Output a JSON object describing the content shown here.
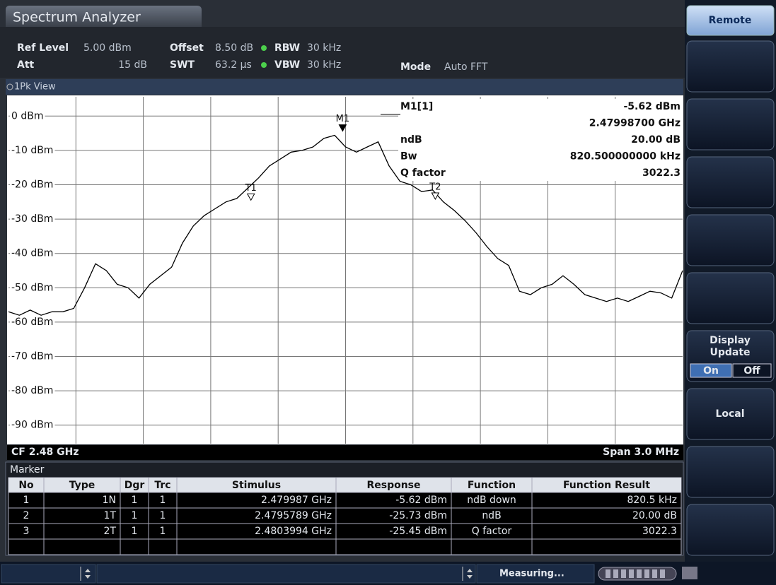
{
  "header": {
    "title": "Spectrum Analyzer",
    "settings": [
      {
        "label": "Ref Level",
        "value": "5.00 dBm"
      },
      {
        "label": "Offset",
        "value": "8.50 dB"
      },
      {
        "label": "RBW",
        "value": "30 kHz"
      },
      {
        "label": "Att",
        "value": "15 dB"
      },
      {
        "label": "SWT",
        "value": "63.2 µs"
      },
      {
        "label": "VBW",
        "value": "30 kHz"
      },
      {
        "label": "Mode",
        "value": "Auto FFT"
      }
    ]
  },
  "view": "1Pk View",
  "chart_data": {
    "type": "line",
    "color": "#000000",
    "ylim": [
      -95,
      5
    ],
    "xlim": [
      2.4785,
      2.4815
    ],
    "yticks": [
      {
        "value": 0,
        "label": "0 dBm"
      },
      {
        "value": -10,
        "label": "-10 dBm"
      },
      {
        "value": -20,
        "label": "-20 dBm"
      },
      {
        "value": -30,
        "label": "-30 dBm"
      },
      {
        "value": -40,
        "label": "-40 dBm"
      },
      {
        "value": -50,
        "label": "-50 dBm"
      },
      {
        "value": -60,
        "label": "-60 dBm"
      },
      {
        "value": -70,
        "label": "-70 dBm"
      },
      {
        "value": -80,
        "label": "-80 dBm"
      },
      {
        "value": -90,
        "label": "-90 dBm"
      }
    ],
    "values": [
      -57,
      -58,
      -56.5,
      -58,
      -57,
      -57,
      -56,
      -50,
      -43,
      -45,
      -49,
      -50,
      -53,
      -49,
      -46.5,
      -44,
      -37,
      -32,
      -29,
      -27,
      -25,
      -24,
      -21,
      -18,
      -14.5,
      -12.5,
      -10.5,
      -10,
      -9,
      -6.5,
      -5.6,
      -9,
      -10.5,
      -9,
      -7.5,
      -14.5,
      -19,
      -20,
      -22,
      -21.5,
      -25,
      -27.5,
      -30.5,
      -34,
      -38,
      -41.5,
      -43.5,
      -51,
      -52,
      -50,
      -49,
      -46.5,
      -49,
      -52,
      -53,
      -54,
      -53,
      -54,
      -52.5,
      -51,
      -51.5,
      -53,
      -45
    ],
    "markers": [
      {
        "label": "M1",
        "x": 2.479987,
        "y": -5.62
      },
      {
        "label": "T1",
        "x": 2.4795789,
        "y": -25.73
      },
      {
        "label": "T2",
        "x": 2.4803994,
        "y": -25.45
      }
    ],
    "readout": [
      {
        "label": "M1[1]",
        "value": "-5.62 dBm"
      },
      {
        "value": "2.47998700 GHz"
      },
      {
        "label": "ndB",
        "value": "20.00 dB"
      },
      {
        "label": "Bw",
        "value": "820.500000000 kHz"
      },
      {
        "label": "Q factor",
        "value": "3022.3"
      }
    ]
  },
  "footer": {
    "left": "CF 2.48 GHz",
    "right": "Span 3.0 MHz"
  },
  "marker_table": {
    "title": "Marker",
    "columns": [
      "No",
      "Type",
      "Dgr",
      "Trc",
      "Stimulus",
      "Response",
      "Function",
      "Function Result"
    ],
    "rows": [
      [
        "1",
        "1N",
        "1",
        "1",
        "2.479987 GHz",
        "-5.62 dBm",
        "ndB down",
        "820.5 kHz"
      ],
      [
        "2",
        "1T",
        "1",
        "1",
        "2.4795789 GHz",
        "-25.73 dBm",
        "ndB",
        "20.00 dB"
      ],
      [
        "3",
        "2T",
        "1",
        "1",
        "2.4803994 GHz",
        "-25.45 dBm",
        "Q factor",
        "3022.3"
      ]
    ]
  },
  "softkeys": {
    "remote": "Remote",
    "display_update": "Display Update",
    "on": "On",
    "off": "Off",
    "local": "Local"
  },
  "status": "Measuring..."
}
